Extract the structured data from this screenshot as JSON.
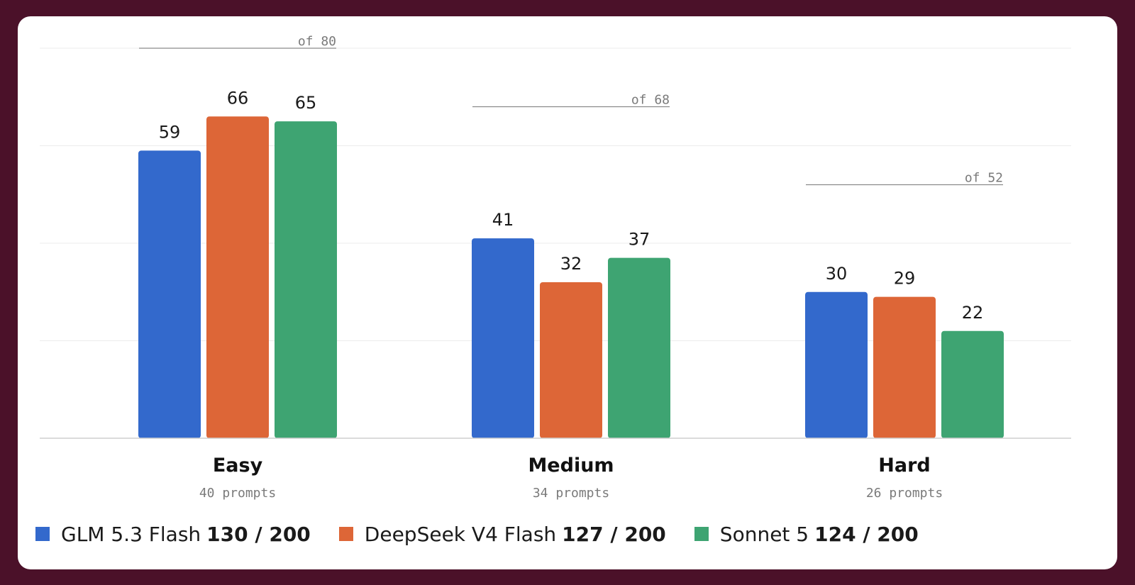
{
  "colors": {
    "frame": "#4b1129",
    "card": "#ffffff",
    "GLM 5.3 Flash": "#3369cc",
    "DeepSeek V4 Flash": "#dd6637",
    "Sonnet 5": "#3ea472"
  },
  "chart_data": {
    "type": "bar",
    "categories": [
      "Easy",
      "Medium",
      "Hard"
    ],
    "category_subtitles": [
      "40 prompts",
      "34 prompts",
      "26 prompts"
    ],
    "category_max_labels": [
      "of 80",
      "of 68",
      "of 52"
    ],
    "category_max": [
      80,
      68,
      52
    ],
    "series": [
      {
        "name": "GLM 5.3 Flash",
        "values": [
          59,
          41,
          30
        ],
        "color": "#3369cc"
      },
      {
        "name": "DeepSeek V4 Flash",
        "values": [
          66,
          32,
          29
        ],
        "color": "#dd6637"
      },
      {
        "name": "Sonnet 5",
        "values": [
          65,
          37,
          22
        ],
        "color": "#3ea472"
      }
    ],
    "ylim": [
      0,
      80
    ],
    "grid": true,
    "legend_position": "bottom-left"
  },
  "legend": [
    {
      "name": "GLM 5.3 Flash",
      "score": "130 / 200",
      "color": "#3369cc"
    },
    {
      "name": "DeepSeek V4 Flash",
      "score": "127 / 200",
      "color": "#dd6637"
    },
    {
      "name": "Sonnet 5",
      "score": "124 / 200",
      "color": "#3ea472"
    }
  ]
}
